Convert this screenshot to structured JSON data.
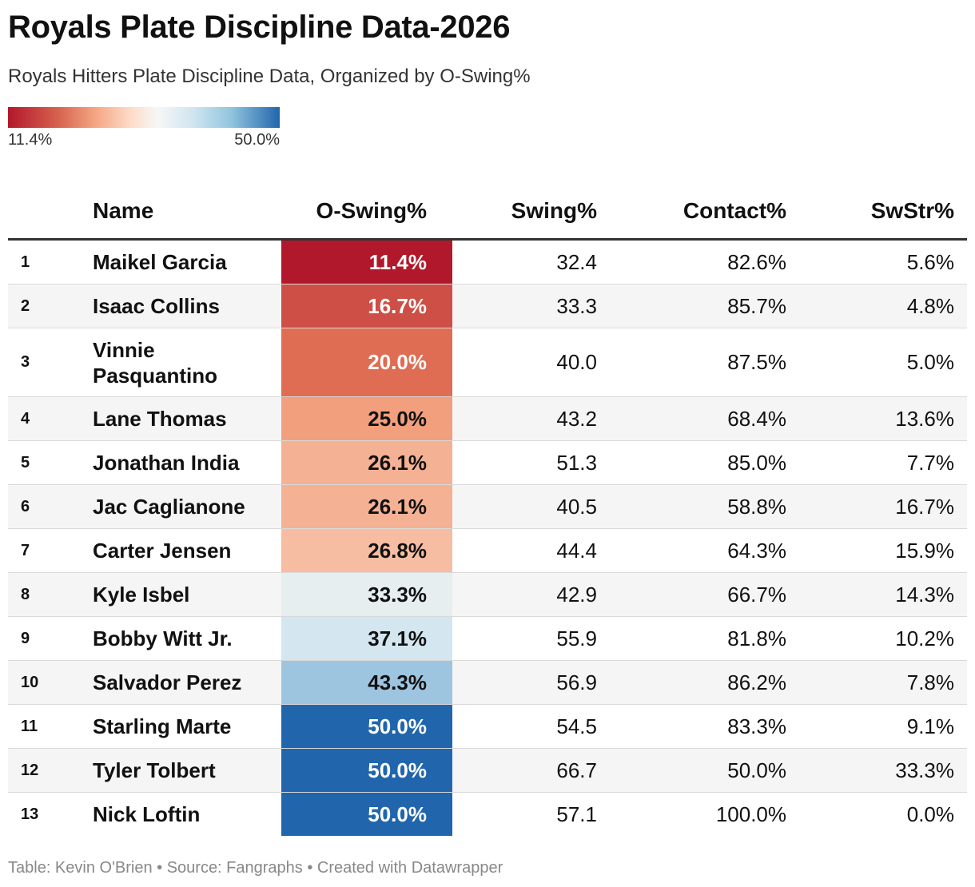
{
  "title": "Royals Plate Discipline Data-2026",
  "subtitle": "Royals Hitters Plate Discipline Data, Organized by O-Swing%",
  "legend": {
    "min_label": "11.4%",
    "max_label": "50.0%",
    "min_color": "#b2182b",
    "max_color": "#2166ac"
  },
  "chart_data": {
    "type": "table",
    "title": "Royals Plate Discipline Data-2026",
    "subtitle": "Royals Hitters Plate Discipline Data, Organized by O-Swing%",
    "columns": [
      "Name",
      "O-Swing%",
      "Swing%",
      "Contact%",
      "SwStr%"
    ],
    "color_scale": {
      "column": "O-Swing%",
      "min": 11.4,
      "max": 50.0
    },
    "rows": [
      {
        "rank": "1",
        "name": "Maikel Garcia",
        "o_swing_value": 11.4,
        "o_swing": "11.4%",
        "swing": "32.4",
        "contact": "82.6%",
        "swstr": "5.6%"
      },
      {
        "rank": "2",
        "name": "Isaac Collins",
        "o_swing_value": 16.7,
        "o_swing": "16.7%",
        "swing": "33.3",
        "contact": "85.7%",
        "swstr": "4.8%"
      },
      {
        "rank": "3",
        "name": "Vinnie Pasquantino",
        "o_swing_value": 20.0,
        "o_swing": "20.0%",
        "swing": "40.0",
        "contact": "87.5%",
        "swstr": "5.0%"
      },
      {
        "rank": "4",
        "name": "Lane Thomas",
        "o_swing_value": 25.0,
        "o_swing": "25.0%",
        "swing": "43.2",
        "contact": "68.4%",
        "swstr": "13.6%"
      },
      {
        "rank": "5",
        "name": "Jonathan India",
        "o_swing_value": 26.1,
        "o_swing": "26.1%",
        "swing": "51.3",
        "contact": "85.0%",
        "swstr": "7.7%"
      },
      {
        "rank": "6",
        "name": "Jac Caglianone",
        "o_swing_value": 26.1,
        "o_swing": "26.1%",
        "swing": "40.5",
        "contact": "58.8%",
        "swstr": "16.7%"
      },
      {
        "rank": "7",
        "name": "Carter Jensen",
        "o_swing_value": 26.8,
        "o_swing": "26.8%",
        "swing": "44.4",
        "contact": "64.3%",
        "swstr": "15.9%"
      },
      {
        "rank": "8",
        "name": "Kyle Isbel",
        "o_swing_value": 33.3,
        "o_swing": "33.3%",
        "swing": "42.9",
        "contact": "66.7%",
        "swstr": "14.3%"
      },
      {
        "rank": "9",
        "name": "Bobby Witt Jr.",
        "o_swing_value": 37.1,
        "o_swing": "37.1%",
        "swing": "55.9",
        "contact": "81.8%",
        "swstr": "10.2%"
      },
      {
        "rank": "10",
        "name": "Salvador Perez",
        "o_swing_value": 43.3,
        "o_swing": "43.3%",
        "swing": "56.9",
        "contact": "86.2%",
        "swstr": "7.8%"
      },
      {
        "rank": "11",
        "name": "Starling Marte",
        "o_swing_value": 50.0,
        "o_swing": "50.0%",
        "swing": "54.5",
        "contact": "83.3%",
        "swstr": "9.1%"
      },
      {
        "rank": "12",
        "name": "Tyler Tolbert",
        "o_swing_value": 50.0,
        "o_swing": "50.0%",
        "swing": "66.7",
        "contact": "50.0%",
        "swstr": "33.3%"
      },
      {
        "rank": "13",
        "name": "Nick Loftin",
        "o_swing_value": 50.0,
        "o_swing": "50.0%",
        "swing": "57.1",
        "contact": "100.0%",
        "swstr": "0.0%"
      }
    ]
  },
  "footer": "Table: Kevin O'Brien • Source: Fangraphs • Created with Datawrapper"
}
